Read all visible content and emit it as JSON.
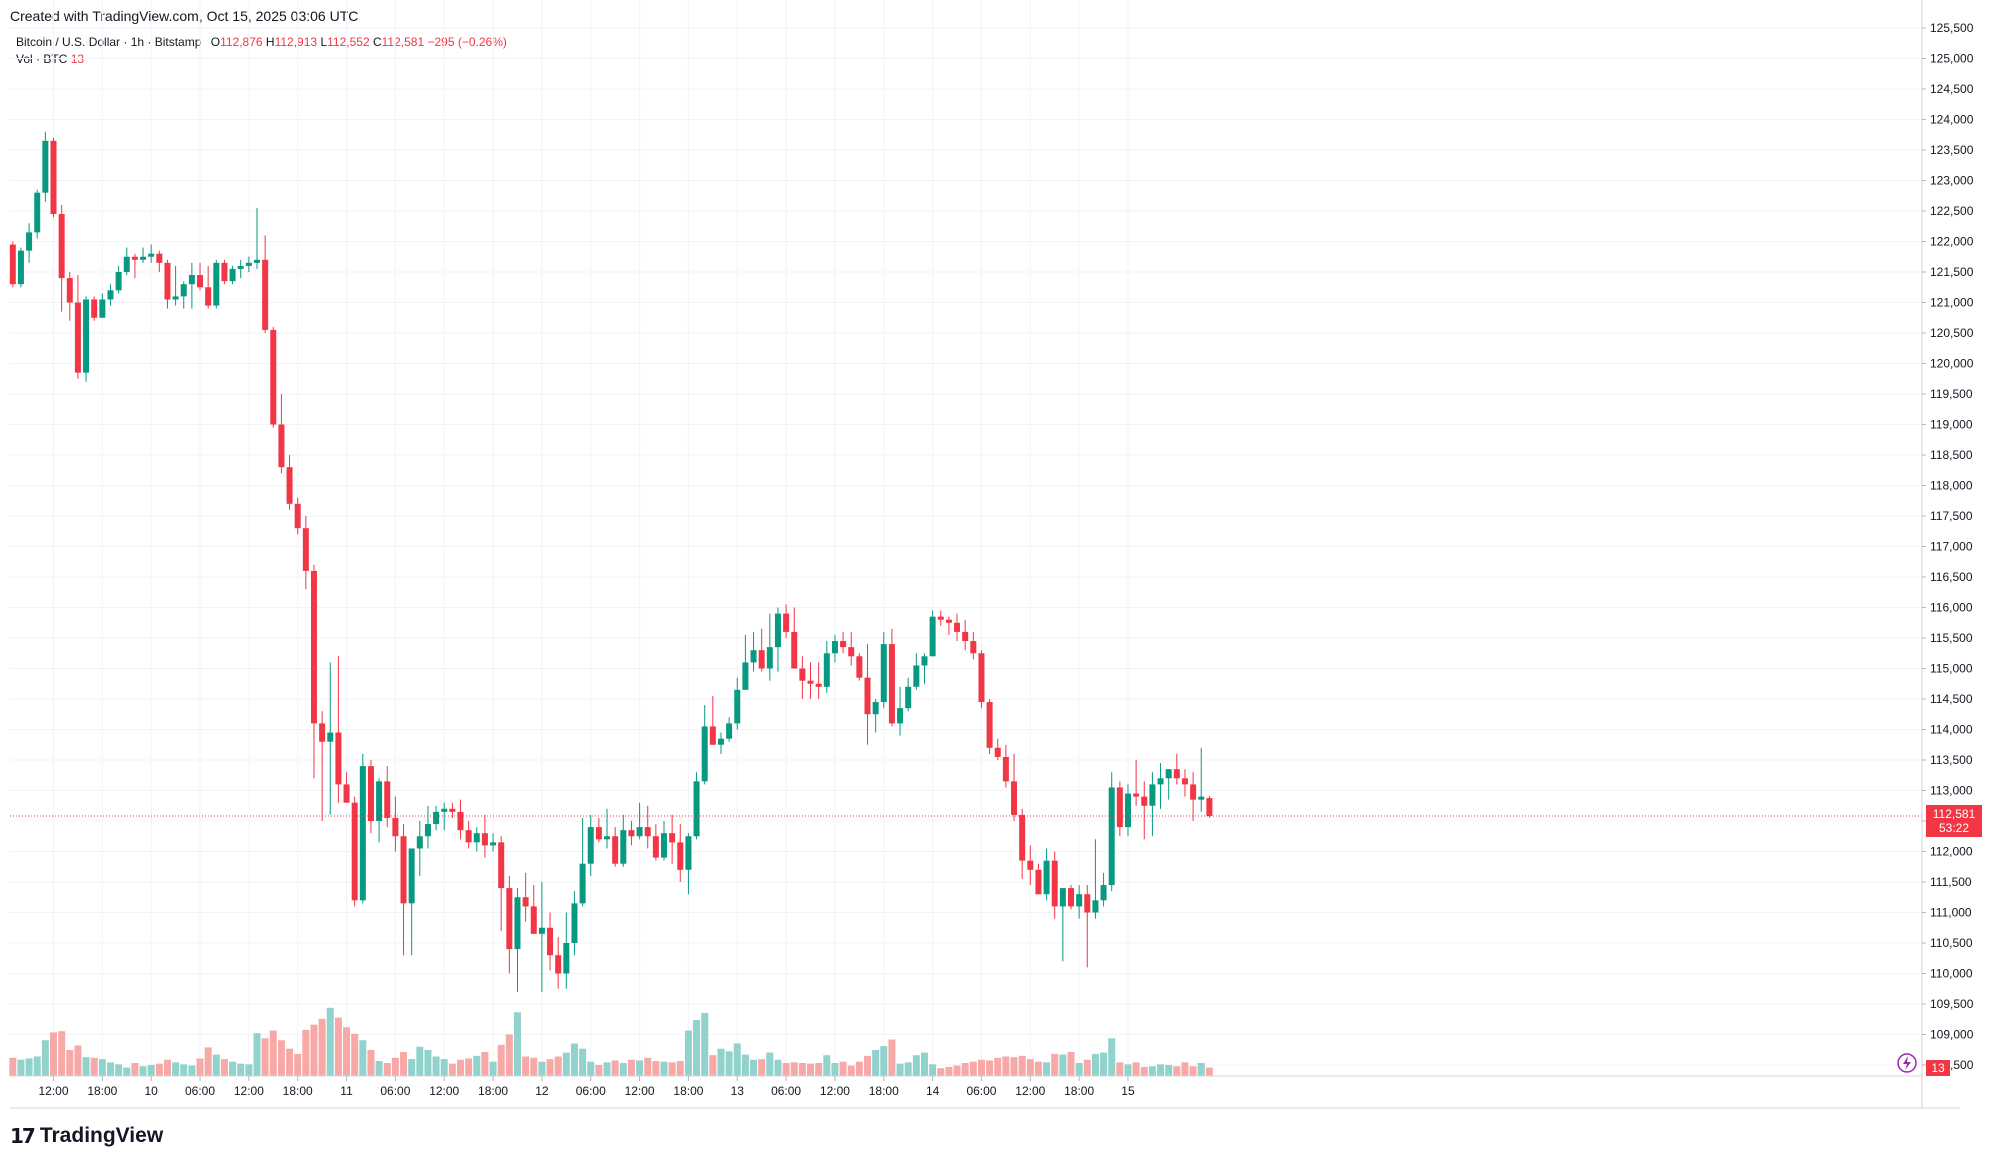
{
  "header": {
    "created_text": "Created with TradingView.com, Oct 15, 2025 03:06 UTC"
  },
  "legend": {
    "symbol": "Bitcoin / U.S. Dollar · 1h · Bitstamp",
    "o_label": "O",
    "o_value": "112,876",
    "h_label": "H",
    "h_value": "112,913",
    "l_label": "L",
    "l_value": "112,552",
    "c_label": "C",
    "c_value": "112,581",
    "change": "−295 (−0.26%)",
    "volume_label": "Vol · BTC",
    "volume_value": "13"
  },
  "price_tag": {
    "price": "112,581",
    "countdown": "53:22"
  },
  "volume_tag": "13",
  "brand": {
    "name": "TradingView"
  },
  "colors": {
    "up": "#089981",
    "down": "#f23645",
    "up_vol": "#92d2cc",
    "down_vol": "#f7a9a7",
    "grid": "#f0f3fa",
    "text": "#131722"
  },
  "chart_data": {
    "type": "candlestick",
    "symbol": "Bitcoin / U.S. Dollar",
    "interval": "1h",
    "exchange": "Bitstamp",
    "ylim": [
      108300,
      125500
    ],
    "y_ticks": [
      "125,500",
      "125,000",
      "124,500",
      "124,000",
      "123,500",
      "123,000",
      "122,500",
      "122,000",
      "121,500",
      "121,000",
      "120,500",
      "120,000",
      "119,500",
      "119,000",
      "118,500",
      "118,000",
      "117,500",
      "117,000",
      "116,500",
      "116,000",
      "115,500",
      "115,000",
      "114,500",
      "114,000",
      "113,500",
      "113,000",
      "112,500",
      "112,000",
      "111,500",
      "111,000",
      "110,500",
      "110,000",
      "109,500",
      "109,000",
      "108,500"
    ],
    "x_ticks": [
      {
        "label": "12:00",
        "bar": 5
      },
      {
        "label": "18:00",
        "bar": 11
      },
      {
        "label": "10",
        "bar": 17
      },
      {
        "label": "06:00",
        "bar": 23
      },
      {
        "label": "12:00",
        "bar": 29
      },
      {
        "label": "18:00",
        "bar": 35
      },
      {
        "label": "11",
        "bar": 41
      },
      {
        "label": "06:00",
        "bar": 47
      },
      {
        "label": "12:00",
        "bar": 53
      },
      {
        "label": "18:00",
        "bar": 59
      },
      {
        "label": "12",
        "bar": 65
      },
      {
        "label": "06:00",
        "bar": 71
      },
      {
        "label": "12:00",
        "bar": 77
      },
      {
        "label": "18:00",
        "bar": 83
      },
      {
        "label": "13",
        "bar": 89
      },
      {
        "label": "06:00",
        "bar": 95
      },
      {
        "label": "12:00",
        "bar": 101
      },
      {
        "label": "18:00",
        "bar": 107
      },
      {
        "label": "14",
        "bar": 113
      },
      {
        "label": "06:00",
        "bar": 119
      },
      {
        "label": "12:00",
        "bar": 125
      },
      {
        "label": "18:00",
        "bar": 131
      },
      {
        "label": "15",
        "bar": 137
      }
    ],
    "last_price": 112581,
    "candles": [
      [
        121950,
        122000,
        121250,
        121300,
        28
      ],
      [
        121300,
        121900,
        121250,
        121850,
        25
      ],
      [
        121850,
        122300,
        121650,
        122150,
        27
      ],
      [
        122150,
        122850,
        122050,
        122800,
        30
      ],
      [
        122800,
        123800,
        122650,
        123650,
        55
      ],
      [
        123650,
        123700,
        122400,
        122450,
        67
      ],
      [
        122450,
        122600,
        120850,
        121400,
        69
      ],
      [
        121400,
        121500,
        120700,
        121000,
        40
      ],
      [
        121000,
        121450,
        119750,
        119850,
        47
      ],
      [
        119850,
        121100,
        119700,
        121050,
        29
      ],
      [
        121050,
        121100,
        120700,
        120750,
        28
      ],
      [
        120750,
        121150,
        120750,
        121050,
        26
      ],
      [
        121050,
        121300,
        120950,
        121200,
        21
      ],
      [
        121200,
        121600,
        121150,
        121500,
        18
      ],
      [
        121500,
        121900,
        121450,
        121750,
        13
      ],
      [
        121750,
        121800,
        121400,
        121700,
        20
      ],
      [
        121700,
        121900,
        121650,
        121750,
        15
      ],
      [
        121750,
        121950,
        121650,
        121800,
        17
      ],
      [
        121800,
        121850,
        121500,
        121650,
        19
      ],
      [
        121650,
        121700,
        120900,
        121050,
        25
      ],
      [
        121050,
        121600,
        120950,
        121100,
        21
      ],
      [
        121100,
        121350,
        120900,
        121300,
        18
      ],
      [
        121300,
        121650,
        120900,
        121450,
        16
      ],
      [
        121450,
        121650,
        121200,
        121250,
        27
      ],
      [
        121250,
        121600,
        120900,
        120950,
        44
      ],
      [
        120950,
        121700,
        120900,
        121650,
        33
      ],
      [
        121650,
        121700,
        121300,
        121350,
        26
      ],
      [
        121350,
        121600,
        121300,
        121550,
        22
      ],
      [
        121550,
        121700,
        121400,
        121600,
        19
      ],
      [
        121600,
        121750,
        121500,
        121650,
        18
      ],
      [
        121650,
        122550,
        121550,
        121700,
        66
      ],
      [
        121700,
        122100,
        120500,
        120550,
        58
      ],
      [
        120550,
        120600,
        118950,
        119000,
        70
      ],
      [
        119000,
        119500,
        118200,
        118300,
        55
      ],
      [
        118300,
        118500,
        117600,
        117700,
        42
      ],
      [
        117700,
        117800,
        117200,
        117300,
        34
      ],
      [
        117300,
        117500,
        116300,
        116600,
        71
      ],
      [
        116600,
        116700,
        113200,
        114100,
        79
      ],
      [
        114100,
        114300,
        112500,
        113800,
        88
      ],
      [
        113800,
        115100,
        112600,
        113950,
        105
      ],
      [
        113950,
        115200,
        112800,
        113100,
        90
      ],
      [
        113100,
        113300,
        112800,
        112800,
        75
      ],
      [
        112800,
        112900,
        111100,
        111200,
        65
      ],
      [
        111200,
        113600,
        111150,
        113400,
        55
      ],
      [
        113400,
        113500,
        112300,
        112500,
        40
      ],
      [
        112500,
        113200,
        112150,
        113150,
        23
      ],
      [
        113150,
        113400,
        112400,
        112550,
        20
      ],
      [
        112550,
        112900,
        112000,
        112250,
        28
      ],
      [
        112250,
        112450,
        110300,
        111150,
        37
      ],
      [
        111150,
        112000,
        110300,
        112050,
        26
      ],
      [
        112050,
        112500,
        111600,
        112250,
        45
      ],
      [
        112250,
        112750,
        112050,
        112450,
        40
      ],
      [
        112450,
        112750,
        112350,
        112650,
        30
      ],
      [
        112650,
        112800,
        112350,
        112700,
        26
      ],
      [
        112700,
        112800,
        112550,
        112650,
        19
      ],
      [
        112650,
        112850,
        112200,
        112350,
        25
      ],
      [
        112350,
        112500,
        112050,
        112150,
        27
      ],
      [
        112150,
        112400,
        112000,
        112300,
        31
      ],
      [
        112300,
        112600,
        111900,
        112100,
        37
      ],
      [
        112100,
        112300,
        112000,
        112150,
        22
      ],
      [
        112150,
        112250,
        110700,
        111400,
        48
      ],
      [
        111400,
        111600,
        110000,
        110400,
        64
      ],
      [
        110400,
        111400,
        109700,
        111250,
        98
      ],
      [
        111250,
        111650,
        110850,
        111100,
        30
      ],
      [
        111100,
        111450,
        110650,
        110650,
        28
      ],
      [
        110650,
        111500,
        109700,
        110750,
        22
      ],
      [
        110750,
        111000,
        110050,
        110300,
        26
      ],
      [
        110300,
        110600,
        109750,
        110000,
        30
      ],
      [
        110000,
        111000,
        109750,
        110500,
        36
      ],
      [
        110500,
        111350,
        110300,
        111150,
        50
      ],
      [
        111150,
        112550,
        111100,
        111800,
        42
      ],
      [
        111800,
        112600,
        111600,
        112400,
        22
      ],
      [
        112400,
        112550,
        112150,
        112200,
        17
      ],
      [
        112200,
        112700,
        112050,
        112250,
        21
      ],
      [
        112250,
        112400,
        111750,
        111800,
        24
      ],
      [
        111800,
        112600,
        111750,
        112350,
        20
      ],
      [
        112350,
        112500,
        112100,
        112250,
        25
      ],
      [
        112250,
        112800,
        112200,
        112400,
        24
      ],
      [
        112400,
        112750,
        112050,
        112250,
        28
      ],
      [
        112250,
        112450,
        111850,
        111900,
        23
      ],
      [
        111900,
        112500,
        111850,
        112300,
        22
      ],
      [
        112300,
        112600,
        111800,
        112150,
        21
      ],
      [
        112150,
        112450,
        111500,
        111700,
        23
      ],
      [
        111700,
        112300,
        111300,
        112250,
        70
      ],
      [
        112250,
        113300,
        112200,
        113150,
        86
      ],
      [
        113150,
        114400,
        113100,
        114050,
        97
      ],
      [
        114050,
        114550,
        113750,
        113750,
        32
      ],
      [
        113750,
        113950,
        113600,
        113850,
        42
      ],
      [
        113850,
        114200,
        113800,
        114100,
        38
      ],
      [
        114100,
        114850,
        114000,
        114650,
        50
      ],
      [
        114650,
        115550,
        114650,
        115100,
        33
      ],
      [
        115100,
        115600,
        114950,
        115300,
        25
      ],
      [
        115300,
        115650,
        114950,
        115000,
        26
      ],
      [
        115000,
        115900,
        114800,
        115350,
        36
      ],
      [
        115350,
        116000,
        114950,
        115900,
        25
      ],
      [
        115900,
        116050,
        115500,
        115600,
        20
      ],
      [
        115600,
        116000,
        115150,
        115000,
        21
      ],
      [
        115000,
        115200,
        114500,
        114800,
        20
      ],
      [
        114800,
        115100,
        114500,
        114750,
        19
      ],
      [
        114750,
        115100,
        114500,
        114700,
        20
      ],
      [
        114700,
        115450,
        114600,
        115250,
        32
      ],
      [
        115250,
        115550,
        115100,
        115450,
        20
      ],
      [
        115450,
        115600,
        115250,
        115350,
        22
      ],
      [
        115350,
        115600,
        115050,
        115200,
        16
      ],
      [
        115200,
        115250,
        114800,
        114850,
        22
      ],
      [
        114850,
        115400,
        113750,
        114250,
        31
      ],
      [
        114250,
        114500,
        113950,
        114450,
        40
      ],
      [
        114450,
        115600,
        114350,
        115400,
        46
      ],
      [
        115400,
        115650,
        114050,
        114100,
        56
      ],
      [
        114100,
        114700,
        113900,
        114350,
        19
      ],
      [
        114350,
        114850,
        114300,
        114700,
        21
      ],
      [
        114700,
        115250,
        114650,
        115050,
        32
      ],
      [
        115050,
        115250,
        114750,
        115200,
        36
      ],
      [
        115200,
        115950,
        115200,
        115850,
        18
      ],
      [
        115850,
        115950,
        115700,
        115800,
        12
      ],
      [
        115800,
        115850,
        115550,
        115750,
        14
      ],
      [
        115750,
        115900,
        115450,
        115600,
        16
      ],
      [
        115600,
        115800,
        115300,
        115450,
        20
      ],
      [
        115450,
        115600,
        115150,
        115250,
        22
      ],
      [
        115250,
        115300,
        114350,
        114450,
        25
      ],
      [
        114450,
        114500,
        113600,
        113700,
        24
      ],
      [
        113700,
        113850,
        113500,
        113550,
        28
      ],
      [
        113550,
        113750,
        113050,
        113150,
        30
      ],
      [
        113150,
        113600,
        112500,
        112600,
        29
      ],
      [
        112600,
        112700,
        111550,
        111850,
        31
      ],
      [
        111850,
        112100,
        111450,
        111700,
        26
      ],
      [
        111700,
        111800,
        111300,
        111300,
        22
      ],
      [
        111300,
        112050,
        111200,
        111850,
        21
      ],
      [
        111850,
        112000,
        110900,
        111100,
        34
      ],
      [
        111100,
        111400,
        110200,
        111400,
        33
      ],
      [
        111400,
        111450,
        111050,
        111100,
        37
      ],
      [
        111100,
        111450,
        110900,
        111300,
        20
      ],
      [
        111300,
        111450,
        110100,
        111000,
        25
      ],
      [
        111000,
        112200,
        110900,
        111200,
        34
      ],
      [
        111200,
        111650,
        111100,
        111450,
        36
      ],
      [
        111450,
        113300,
        111350,
        113050,
        58
      ],
      [
        113050,
        113150,
        112250,
        112400,
        21
      ],
      [
        112400,
        113100,
        112250,
        112950,
        18
      ],
      [
        112950,
        113500,
        112750,
        112900,
        21
      ],
      [
        112900,
        113150,
        112200,
        112750,
        14
      ],
      [
        112750,
        113300,
        112250,
        113100,
        15
      ],
      [
        113100,
        113450,
        112700,
        113200,
        18
      ],
      [
        113200,
        113300,
        112850,
        113350,
        17
      ],
      [
        113350,
        113600,
        113100,
        113200,
        15
      ],
      [
        113200,
        113350,
        112900,
        113100,
        21
      ],
      [
        113100,
        113300,
        112500,
        112850,
        15
      ],
      [
        112850,
        113700,
        112650,
        112900,
        20
      ],
      [
        112876,
        112913,
        112552,
        112581,
        13
      ]
    ]
  }
}
